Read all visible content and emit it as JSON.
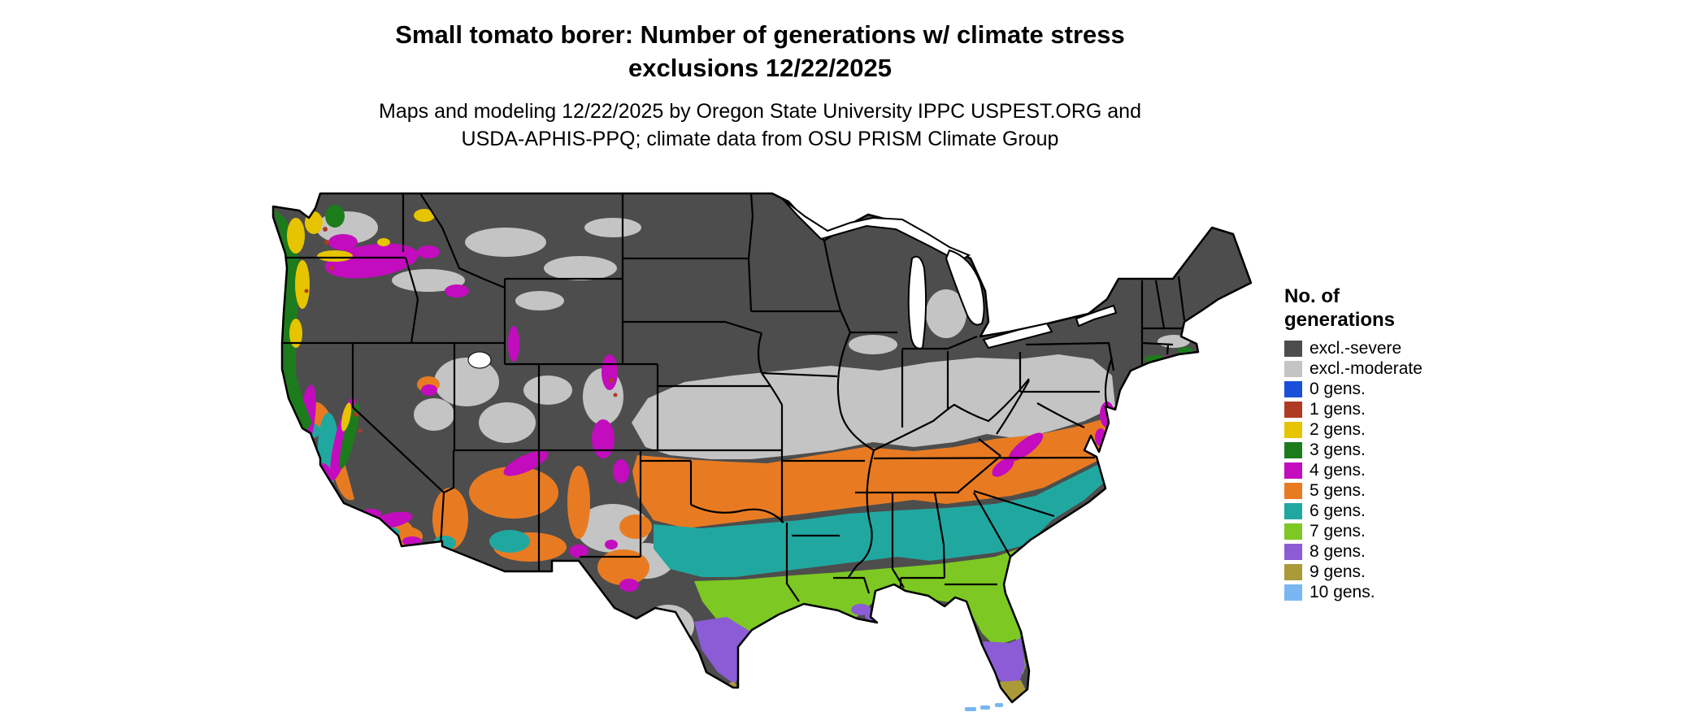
{
  "title": {
    "line1": "Small tomato borer: Number of generations w/ climate stress",
    "line2": "exclusions 12/22/2025"
  },
  "subtitle": {
    "line1": "Maps and modeling 12/22/2025 by Oregon State University IPPC USPEST.ORG and",
    "line2": "USDA-APHIS-PPQ; climate data from OSU PRISM Climate Group"
  },
  "legend": {
    "title_line1": "No. of",
    "title_line2": "generations",
    "items": [
      {
        "key": "severe",
        "label": "excl.-severe",
        "color": "#4D4D4D"
      },
      {
        "key": "moderate",
        "label": "excl.-moderate",
        "color": "#C4C4C4"
      },
      {
        "key": "g0",
        "label": "0 gens.",
        "color": "#1A50D8"
      },
      {
        "key": "g1",
        "label": "1 gens.",
        "color": "#B03B24"
      },
      {
        "key": "g2",
        "label": "2 gens.",
        "color": "#E6C400"
      },
      {
        "key": "g3",
        "label": "3 gens.",
        "color": "#1C7C1C"
      },
      {
        "key": "g4",
        "label": "4 gens.",
        "color": "#C20CBE"
      },
      {
        "key": "g5",
        "label": "5 gens.",
        "color": "#E87B22"
      },
      {
        "key": "g6",
        "label": "6 gens.",
        "color": "#20A8A0"
      },
      {
        "key": "g7",
        "label": "7 gens.",
        "color": "#7DC822"
      },
      {
        "key": "g8",
        "label": "8 gens.",
        "color": "#8B5CD6"
      },
      {
        "key": "g9",
        "label": "9 gens.",
        "color": "#AB9A38"
      },
      {
        "key": "g10",
        "label": "10 gens.",
        "color": "#79B7F2"
      }
    ]
  },
  "map": {
    "region": "Conterminous United States",
    "water_color": "#FFFFFF",
    "state_border_color": "#000000"
  }
}
